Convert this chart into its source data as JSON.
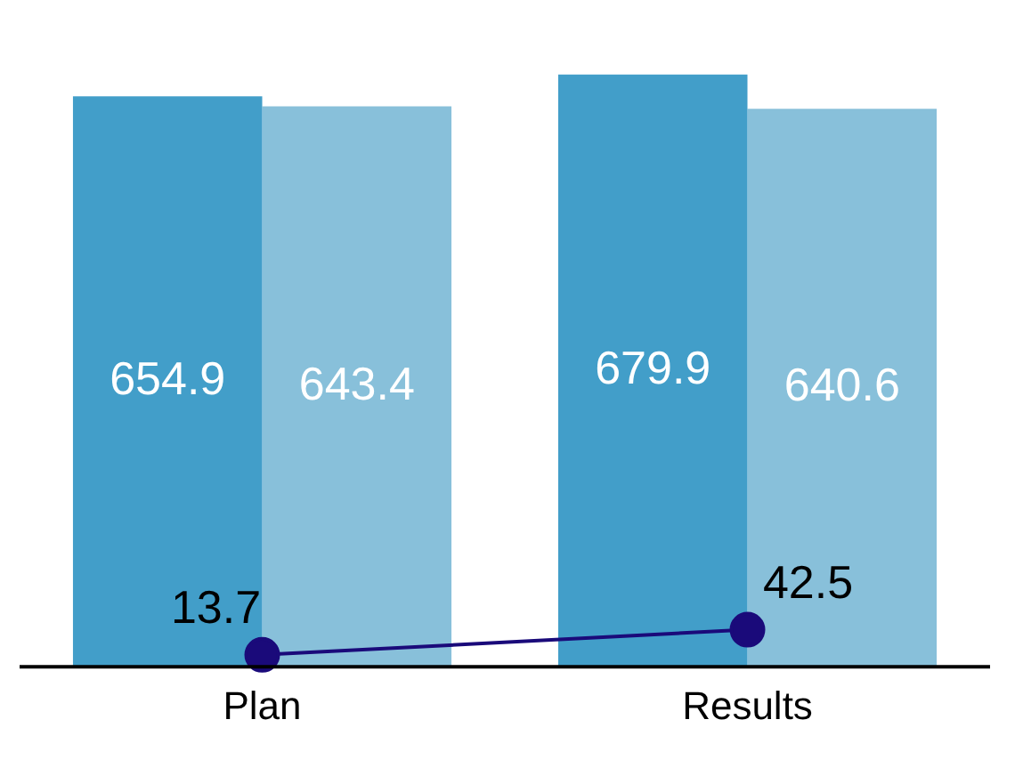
{
  "chart_data": {
    "type": "bar",
    "categories": [
      "Plan",
      "Results"
    ],
    "series": [
      {
        "color": "#429ec9",
        "values": [
          654.9,
          679.9
        ]
      },
      {
        "color": "#88c0da",
        "values": [
          643.4,
          640.6
        ]
      },
      {
        "type": "line",
        "color": "#1a0a7a",
        "values": [
          13.7,
          42.5
        ]
      }
    ],
    "tick_labels": "x",
    "data_labels": true,
    "marker": "circle",
    "legend": false,
    "grid": false
  }
}
